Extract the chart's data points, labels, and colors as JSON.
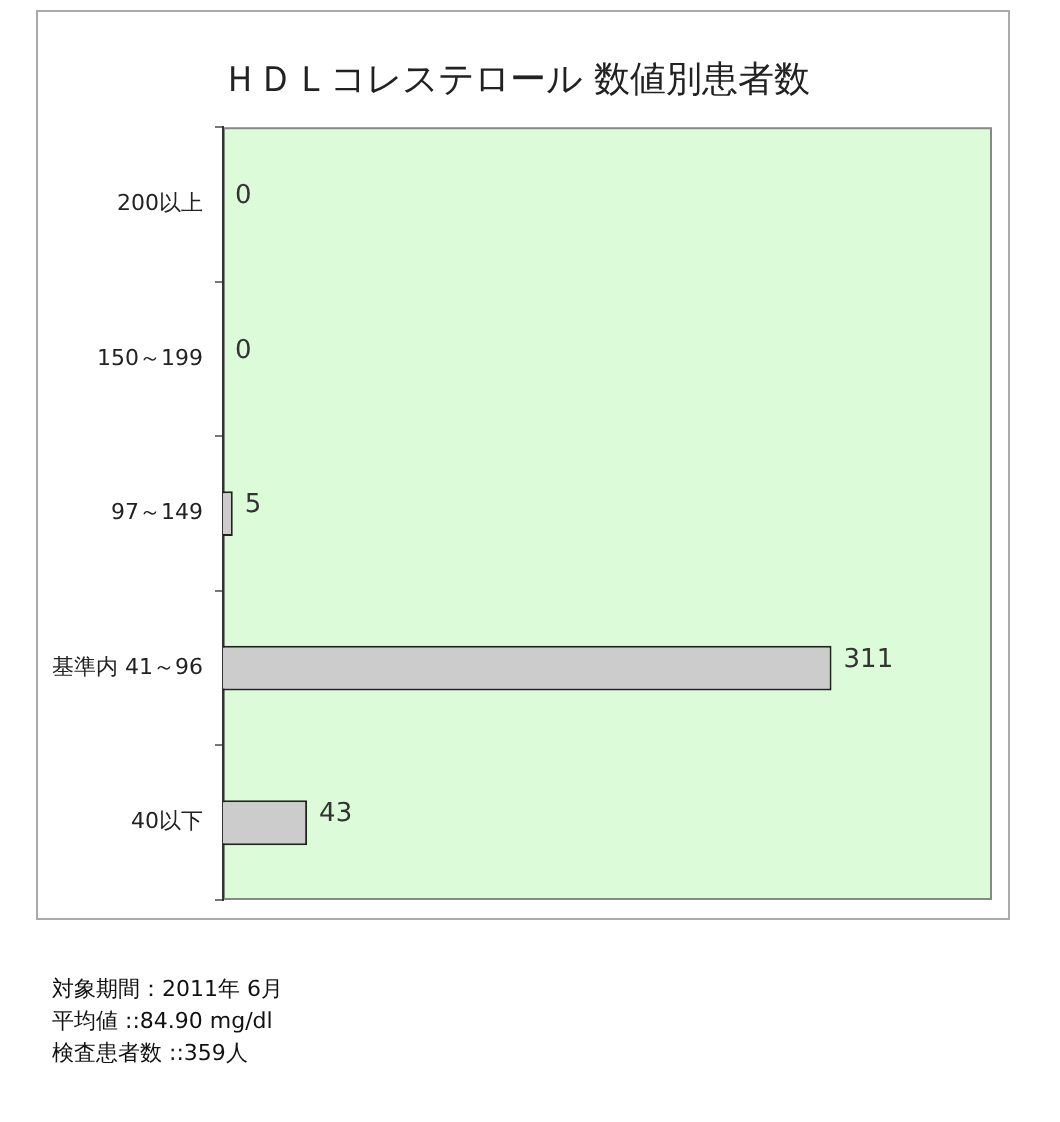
{
  "chart_data": {
    "type": "bar",
    "orientation": "horizontal",
    "title": "ＨＤＬコレステロール 数値別患者数",
    "categories": [
      "200以上",
      "150～199",
      "97～149",
      "基準内 41～96",
      "40以下"
    ],
    "values": [
      0,
      0,
      5,
      311,
      43
    ],
    "color": "#cccccc",
    "xlim": [
      0,
      393
    ],
    "tick_labels": "y",
    "grid": false,
    "legend": false,
    "data_labels": true,
    "annotations": [
      "対象期間：2011年 6月",
      "平均値 ::84.90 mg/dl",
      "検査患者数 ::359人"
    ]
  }
}
